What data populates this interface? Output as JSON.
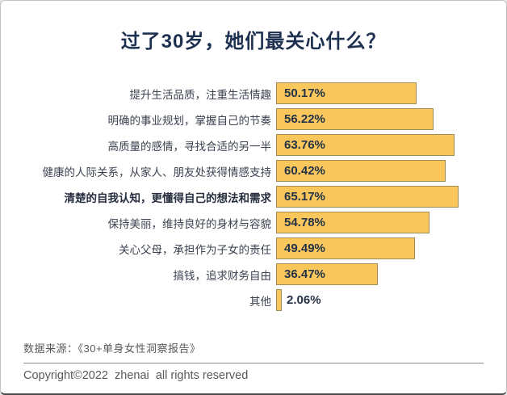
{
  "title": "过了30岁，她们最关心什么？",
  "chart_data": {
    "type": "bar",
    "orientation": "horizontal",
    "title": "过了30岁，她们最关心什么？",
    "categories": [
      "提升生活品质，注重生活情趣",
      "明确的事业规划，掌握自己的节奏",
      "高质量的感情，寻找合适的另一半",
      "健康的人际关系，从家人、朋友处获得情感支持",
      "清楚的自我认知，更懂得自己的想法和需求",
      "保持美丽，维持良好的身材与容貌",
      "关心父母，承担作为子女的责任",
      "搞钱，追求财务自由",
      "其他"
    ],
    "values": [
      50.17,
      56.22,
      63.76,
      60.42,
      65.17,
      54.78,
      49.49,
      36.47,
      2.06
    ],
    "value_labels": [
      "50.17%",
      "56.22%",
      "63.76%",
      "60.42%",
      "65.17%",
      "54.78%",
      "49.49%",
      "36.47%",
      "2.06%"
    ],
    "highlighted_index": 4,
    "xlim": [
      0,
      68
    ],
    "grid": false,
    "legend": false,
    "bar_color": "#F9C75C",
    "bar_border_color": "#9C8D58",
    "value_text_color": "#253248",
    "label_text_color": "#3C4250",
    "title_color": "#1F3151"
  },
  "footer": {
    "source": "数据来源：《30+单身女性洞察报告》",
    "copyright": "Copyright©2022  zhenai  all rights reserved"
  }
}
